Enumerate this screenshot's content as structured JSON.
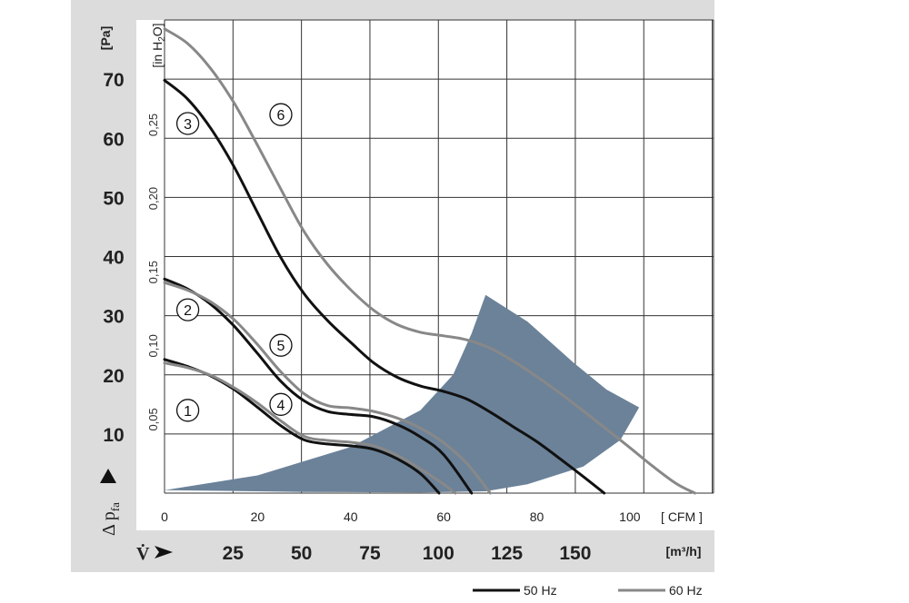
{
  "chart_data": {
    "type": "line",
    "y_axis_primary": {
      "unit": "[Pa]",
      "ticks": [
        "10",
        "20",
        "30",
        "40",
        "50",
        "60",
        "70"
      ],
      "range": [
        0,
        80
      ],
      "symbol": "Δ p",
      "subscript": "fa"
    },
    "y_axis_secondary": {
      "unit": "[in H",
      "unit_sub": "2",
      "unit_end": "O]",
      "ticks": [
        "0,05",
        "0,10",
        "0,15",
        "0,20",
        "0,25"
      ],
      "values": [
        0.05,
        0.1,
        0.15,
        0.2,
        0.25
      ]
    },
    "x_axis_primary": {
      "unit": "[ CFM ]",
      "ticks": [
        "0",
        "20",
        "40",
        "60",
        "80",
        "100"
      ],
      "values": [
        0,
        20,
        40,
        60,
        80,
        100
      ],
      "range": [
        0,
        118
      ]
    },
    "x_axis_secondary": {
      "unit": "[m³/h]",
      "symbol": "V̇",
      "ticks": [
        "25",
        "50",
        "75",
        "100",
        "125",
        "150"
      ],
      "values": [
        25,
        50,
        75,
        100,
        125,
        150
      ]
    },
    "grid": true,
    "operating_region_color": "#6b8299",
    "series": [
      {
        "name": "1",
        "frequency": "50 Hz",
        "x": [
          0,
          5,
          10,
          15,
          20,
          25,
          30,
          35,
          40,
          45,
          50,
          55,
          59
        ],
        "y": [
          22.6,
          21.4,
          19.8,
          17.5,
          14.5,
          11.4,
          9.0,
          8.3,
          8.0,
          7.4,
          5.8,
          3.3,
          0
        ]
      },
      {
        "name": "2",
        "frequency": "50 Hz",
        "x": [
          0,
          5,
          10,
          15,
          20,
          25,
          30,
          35,
          40,
          45,
          50,
          55,
          60,
          66
        ],
        "y": [
          36.2,
          34.5,
          31.9,
          28.2,
          23.6,
          18.9,
          15.6,
          13.8,
          13.3,
          12.9,
          11.6,
          9.5,
          6.5,
          0
        ]
      },
      {
        "name": "3",
        "frequency": "50 Hz",
        "x": [
          0,
          5,
          10,
          15,
          20,
          25,
          30,
          35,
          40,
          45,
          50,
          55,
          60,
          65,
          70,
          75,
          80,
          85,
          90,
          94.5
        ],
        "y": [
          69.8,
          66.6,
          61.6,
          55.1,
          47.4,
          39.8,
          33.7,
          29.2,
          25.5,
          22.0,
          19.6,
          18.1,
          17.2,
          15.9,
          13.7,
          11.2,
          8.7,
          5.8,
          2.8,
          0
        ]
      },
      {
        "name": "4",
        "frequency": "60 Hz",
        "x": [
          0,
          5,
          10,
          15,
          20,
          25,
          30,
          35,
          40,
          45,
          50,
          55,
          60,
          62.5
        ],
        "y": [
          22.0,
          21.2,
          19.9,
          17.8,
          15.2,
          12.2,
          9.6,
          8.9,
          8.6,
          8.0,
          6.4,
          4.1,
          1.5,
          0
        ]
      },
      {
        "name": "5",
        "frequency": "60 Hz",
        "x": [
          0,
          5,
          10,
          15,
          20,
          25,
          30,
          35,
          40,
          45,
          50,
          55,
          60,
          65,
          70
        ],
        "y": [
          35.6,
          34.3,
          32.3,
          29.3,
          25.1,
          20.5,
          16.8,
          14.8,
          14.4,
          13.8,
          12.7,
          11.0,
          8.5,
          5.0,
          0
        ]
      },
      {
        "name": "6",
        "frequency": "60 Hz",
        "x": [
          0,
          5,
          10,
          15,
          20,
          25,
          30,
          35,
          40,
          45,
          50,
          55,
          60,
          65,
          70,
          75,
          80,
          85,
          90,
          95,
          100,
          105,
          110,
          114
        ],
        "y": [
          78.5,
          76.0,
          71.7,
          65.9,
          58.8,
          51.4,
          44.2,
          38.7,
          34.4,
          30.9,
          28.5,
          27.2,
          26.6,
          25.9,
          24.5,
          22.3,
          19.7,
          16.9,
          13.9,
          10.8,
          7.7,
          4.5,
          1.6,
          0
        ]
      }
    ]
  },
  "legend": {
    "items": [
      {
        "label": "50 Hz",
        "color": "#111111"
      },
      {
        "label": "60 Hz",
        "color": "#888888"
      }
    ]
  }
}
